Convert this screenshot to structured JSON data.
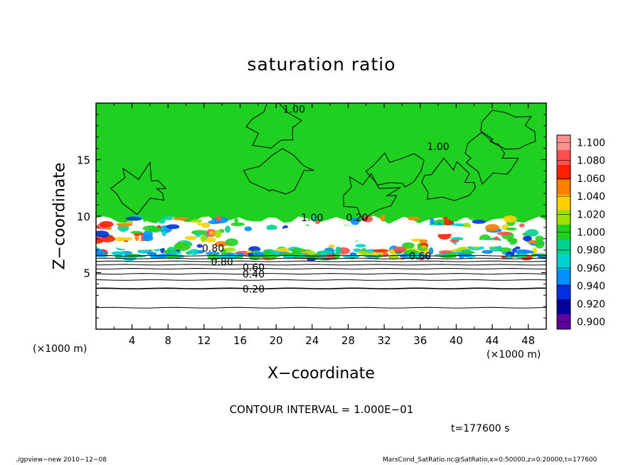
{
  "chart_data": {
    "type": "heatmap",
    "title": "saturation ratio",
    "xlabel": "X−coordinate",
    "ylabel": "Z−coordinate",
    "x_unit": "(×1000 m)",
    "z_unit": "(×1000 m)",
    "xlim": [
      0,
      50
    ],
    "ylim": [
      0,
      20
    ],
    "x_ticks": [
      4,
      8,
      12,
      16,
      20,
      24,
      28,
      32,
      36,
      40,
      44,
      48
    ],
    "y_ticks": [
      5,
      10,
      15
    ],
    "colorbar": {
      "levels": [
        "1.100",
        "1.080",
        "1.060",
        "1.040",
        "1.020",
        "1.000",
        "0.980",
        "0.960",
        "0.940",
        "0.920",
        "0.900"
      ],
      "colors": [
        "#ff9090",
        "#ff5050",
        "#ff2000",
        "#ff8000",
        "#ffd000",
        "#a0e000",
        "#20d020",
        "#00d090",
        "#00d0d0",
        "#0090ff",
        "#0030e0",
        "#0000a0",
        "#6000a0"
      ]
    },
    "contour_labels": [
      "1.00",
      "1.00",
      "1.00",
      "0.20",
      "0.80",
      "0.60",
      "0.40",
      "0.20",
      "0.60",
      "0.80"
    ],
    "contour_levels_z": [
      {
        "z": 1.9,
        "value": 0.1
      },
      {
        "z": 3.6,
        "value": 0.2
      },
      {
        "z": 4.35,
        "value": 0.3
      },
      {
        "z": 4.9,
        "value": 0.4
      },
      {
        "z": 5.35,
        "value": 0.5
      },
      {
        "z": 5.7,
        "value": 0.6
      },
      {
        "z": 6.0,
        "value": 0.7
      },
      {
        "z": 6.25,
        "value": 0.8
      },
      {
        "z": 6.5,
        "value": 0.9
      }
    ],
    "contour_interval": "CONTOUR INTERVAL = 1.000E−01",
    "time": "t=177600 s",
    "green_top_z": 20,
    "green_bottom_z": 9.8,
    "cloud_band_z": [
      6.3,
      9.9
    ]
  },
  "footer": {
    "left": "./gpview−new   2010−12−08",
    "right": "MarsCond_SatRatio.nc@SatRatio,x=0:50000,z=0:20000,t=177600"
  }
}
